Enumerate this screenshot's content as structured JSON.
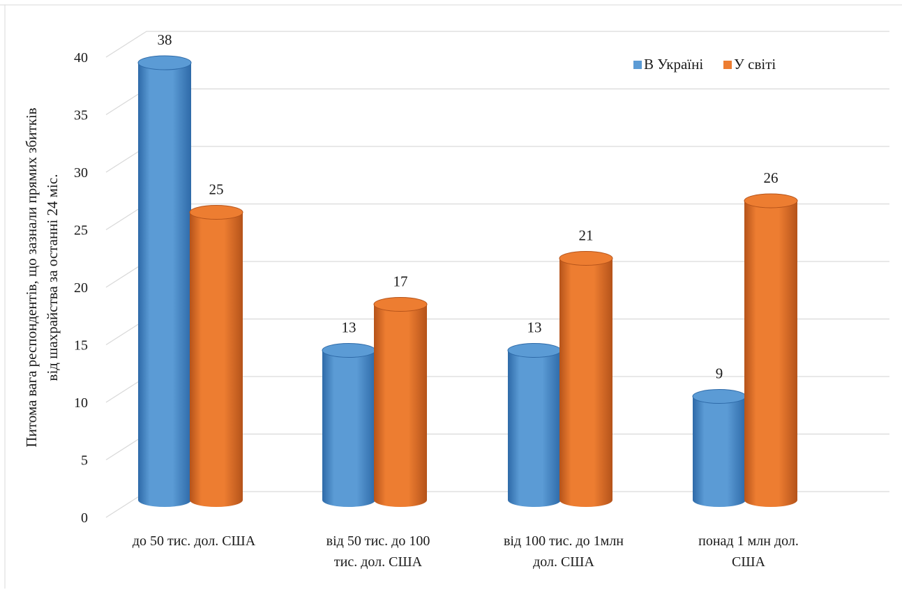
{
  "chart_data": {
    "type": "bar",
    "title": "",
    "xlabel": "",
    "ylabel_lines": [
      "Питома вага респондентів, що зазнали  прямих збитків",
      "від шахрайства  за останні 24 міс."
    ],
    "ylim": [
      0,
      40
    ],
    "yticks": [
      "0",
      "5",
      "10",
      "15",
      "20",
      "25",
      "30",
      "35",
      "40"
    ],
    "grid": true,
    "legend_position": "top-right",
    "categories": [
      [
        "до 50 тис. дол. США"
      ],
      [
        "від 50 тис. до 100",
        "тис. дол. США"
      ],
      [
        "від 100 тис. до 1млн",
        "дол. США"
      ],
      [
        "понад  1 млн дол.",
        "США"
      ]
    ],
    "series": [
      {
        "name": "В Україні",
        "values": [
          38,
          13,
          13,
          9
        ],
        "color": "#5b9bd5",
        "dark": "#2e6aa8"
      },
      {
        "name": "У світі",
        "values": [
          25,
          17,
          21,
          26
        ],
        "color": "#ed7d31",
        "dark": "#b5531a"
      }
    ]
  }
}
